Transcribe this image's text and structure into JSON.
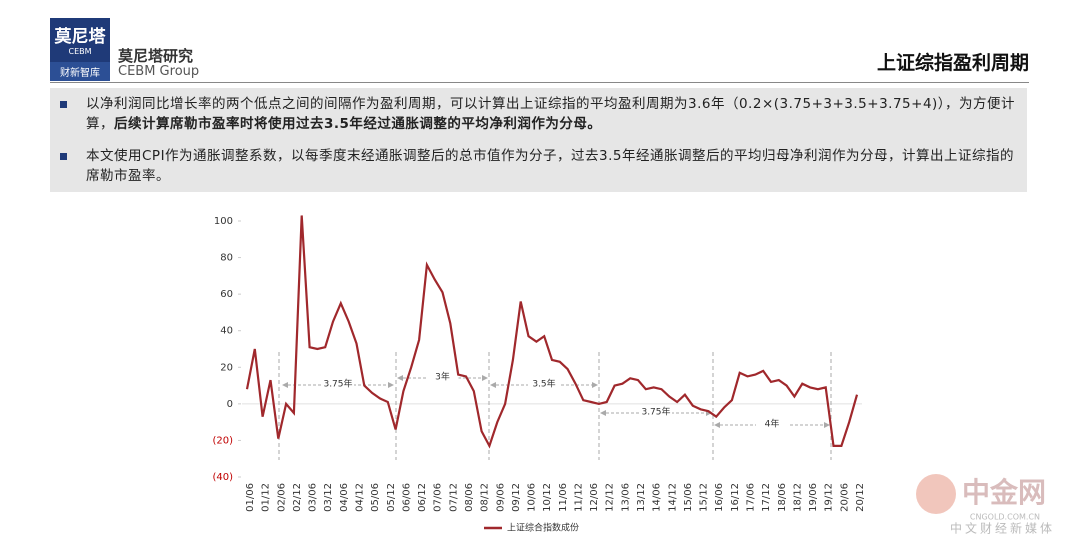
{
  "header": {
    "logo_top": "莫尼塔",
    "logo_sub": "CEBM",
    "logo_bottom": "财新智库",
    "brand": "莫尼塔研究",
    "brand_en": "CEBM Group",
    "title": "上证综指盈利周期"
  },
  "bullets": [
    {
      "text": "以净利润同比增长率的两个低点之间的间隔作为盈利周期，可以计算出上证综指的平均盈利周期为3.6年（0.2×(3.75+3+3.5+3.75+4)），为方便计算，",
      "bold": "后续计算席勒市盈率时将使用过去3.5年经过通胀调整的平均净利润作为分母。"
    },
    {
      "text": "本文使用CPI作为通胀调整系数，以每季度末经通胀调整后的总市值作为分子，过去3.5年经通胀调整后的平均归母净利润作为分母，计算出上证综指的席勒市盈率。"
    }
  ],
  "chart_data": {
    "type": "line",
    "categories": [
      "01/06",
      null,
      "01/12",
      null,
      "02/06",
      null,
      "02/12",
      null,
      "03/06",
      null,
      "03/12",
      null,
      "04/06",
      null,
      "04/12",
      null,
      "05/06",
      null,
      "05/12",
      null,
      "06/06",
      null,
      "06/12",
      null,
      "07/06",
      null,
      "07/12",
      null,
      "08/06",
      null,
      "08/12",
      null,
      "09/06",
      null,
      "09/12",
      null,
      "10/06",
      null,
      "10/12",
      null,
      "11/06",
      null,
      "11/12",
      null,
      "12/06",
      null,
      "12/12",
      null,
      "13/06",
      null,
      "13/12",
      null,
      "14/06",
      null,
      "14/12",
      null,
      "15/06",
      null,
      "15/12",
      null,
      "16/06",
      null,
      "16/12",
      null,
      "17/06",
      null,
      "17/12",
      null,
      "18/06",
      null,
      "18/12",
      null,
      "19/06",
      null,
      "19/12",
      null,
      "20/06",
      null,
      "20/12"
    ],
    "series": [
      {
        "name": "上证综合指数成份",
        "color": "#a0282c",
        "values": [
          8,
          30,
          -7,
          13,
          -19,
          0,
          -5,
          103,
          31,
          30,
          31,
          45,
          55,
          45,
          33,
          10,
          6,
          3,
          1,
          -14,
          7,
          20,
          35,
          76,
          68,
          61,
          44,
          16,
          15,
          7,
          -15,
          -23,
          -10,
          0,
          24,
          56,
          37,
          34,
          37,
          24,
          23,
          19,
          11,
          2,
          1,
          0,
          1,
          10,
          11,
          14,
          13,
          8,
          9,
          8,
          4,
          1,
          5,
          -1,
          -3,
          -4,
          -7,
          -2,
          2,
          17,
          15,
          16,
          18,
          12,
          13,
          10,
          4,
          11,
          9,
          8,
          9,
          -23,
          -23,
          -10,
          5
        ]
      }
    ],
    "ylim": [
      -40,
      100
    ],
    "yticks": [
      {
        "value": -40,
        "label": "(40)"
      },
      {
        "value": -20,
        "label": "(20)"
      },
      0,
      20,
      40,
      60,
      80,
      100
    ],
    "grid": false,
    "annotations": [
      "3.75年",
      "3年",
      "3.5年",
      "3.75年",
      "4年"
    ],
    "legend": "bottom"
  }
}
